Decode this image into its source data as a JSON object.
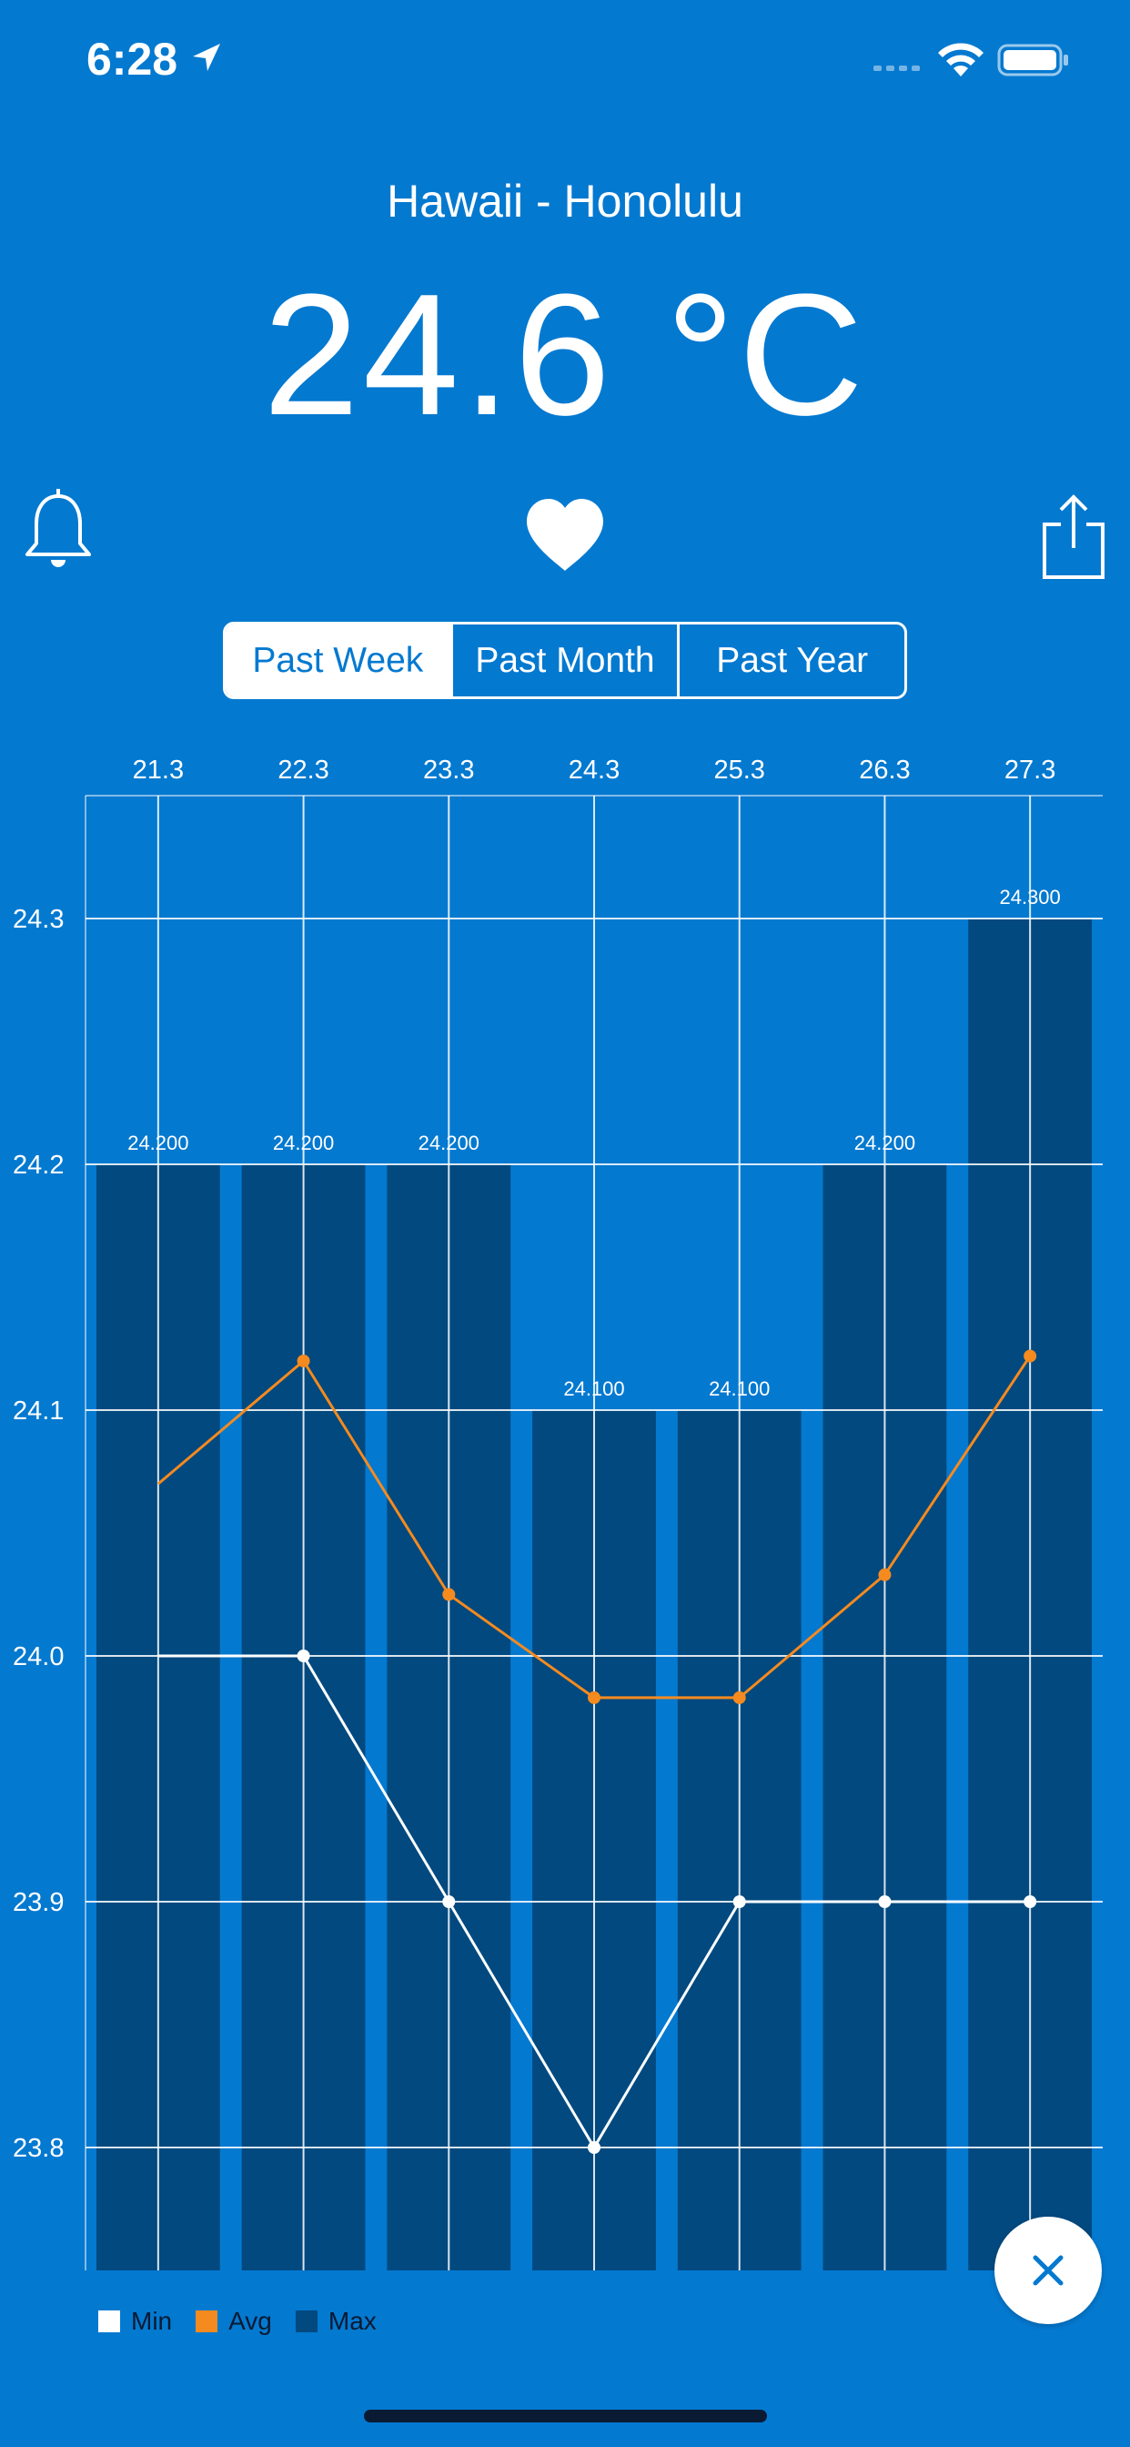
{
  "status_bar": {
    "time": "6:28",
    "icons": [
      "location-arrow-icon",
      "cellular-signal-icon",
      "wifi-icon",
      "battery-icon"
    ]
  },
  "header": {
    "city": "Hawaii - Honolulu",
    "temperature": "24.6 °C"
  },
  "actions": {
    "icons": [
      "bell-icon",
      "heart-icon",
      "share-icon"
    ]
  },
  "segments": {
    "options": [
      "Past Week",
      "Past Month",
      "Past Year"
    ],
    "selected": "Past Week"
  },
  "colors": {
    "background": "#0479d0",
    "bar": "#01497f",
    "avg_line": "#f58a1f",
    "min_line": "#ffffff",
    "legend_text": "#0b1a33"
  },
  "chart_data": {
    "type": "bar",
    "categories": [
      "21.3",
      "22.3",
      "23.3",
      "24.3",
      "25.3",
      "26.3",
      "27.3"
    ],
    "series": [
      {
        "name": "Min",
        "type": "line",
        "values": [
          24.0,
          24.0,
          23.9,
          23.8,
          23.9,
          23.9,
          23.9
        ]
      },
      {
        "name": "Avg",
        "type": "line",
        "values": [
          24.07,
          24.12,
          24.025,
          23.983,
          23.983,
          24.033,
          24.122
        ]
      },
      {
        "name": "Max",
        "type": "bar",
        "values": [
          24.2,
          24.2,
          24.2,
          24.1,
          24.1,
          24.2,
          24.3
        ]
      }
    ],
    "bar_labels": [
      "24.200",
      "24.200",
      "24.200",
      "24.100",
      "24.100",
      "24.200",
      "24.300"
    ],
    "y_ticks": [
      "24.3",
      "24.2",
      "24.1",
      "24.0",
      "23.9",
      "23.8"
    ],
    "ylim": [
      23.75,
      24.35
    ],
    "grid": true,
    "legend_position": "bottom-left",
    "legend": [
      "Min",
      "Avg",
      "Max"
    ]
  },
  "close_button": {
    "icon": "close-icon"
  }
}
